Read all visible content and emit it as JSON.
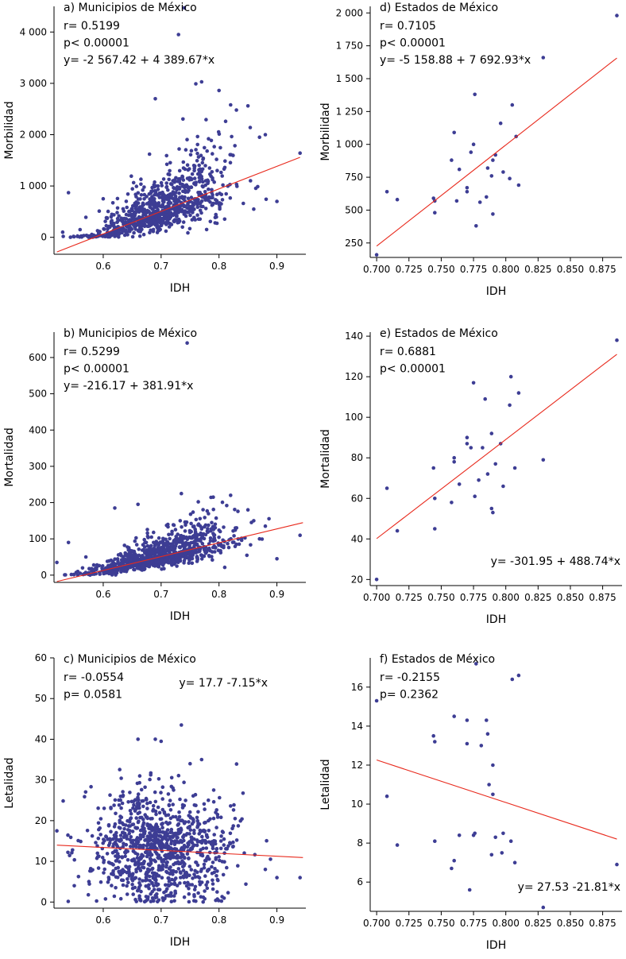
{
  "colors": {
    "point": "#3d3d94",
    "fit_line": "#e8291c",
    "axis": "#000000"
  },
  "chart_data": [
    {
      "id": "a",
      "type": "scatter",
      "title": "a) Municipios de México",
      "xlabel": "IDH",
      "ylabel": "Morbilidad",
      "xlim": [
        0.515,
        0.95
      ],
      "ylim": [
        -330,
        4500
      ],
      "xticks": [
        0.6,
        0.7,
        0.8,
        0.9
      ],
      "xtick_labels": [
        "0.6",
        "0.7",
        "0.8",
        "0.9"
      ],
      "yticks": [
        0,
        1000,
        2000,
        3000,
        4000
      ],
      "ytick_labels": [
        "0",
        "1 000",
        "2 000",
        "3 000",
        "4 000"
      ],
      "stats": [
        "r= 0.5199",
        "p< 0.00001",
        "y= -2 567.42 + 4 389.67*x"
      ],
      "stats_pos": "top-left",
      "fit": {
        "intercept": -2567.42,
        "slope": 4389.67,
        "x_range": [
          0.52,
          0.94
        ]
      },
      "generated_points": {
        "n": 900,
        "x_mean": 0.7,
        "x_sd": 0.06,
        "x_min": 0.53,
        "x_max": 0.92,
        "resid_sd": 340,
        "resid_scale_with_y": true,
        "y_min": 0,
        "seed": 11
      },
      "points": [
        [
          0.54,
          870
        ],
        [
          0.57,
          390
        ],
        [
          0.6,
          750
        ],
        [
          0.68,
          1620
        ],
        [
          0.69,
          2700
        ],
        [
          0.73,
          3950
        ],
        [
          0.74,
          4470
        ],
        [
          0.76,
          2990
        ],
        [
          0.77,
          3030
        ],
        [
          0.8,
          2860
        ],
        [
          0.82,
          2580
        ],
        [
          0.83,
          2480
        ],
        [
          0.85,
          2560
        ],
        [
          0.87,
          1950
        ],
        [
          0.88,
          2000
        ],
        [
          0.9,
          700
        ],
        [
          0.94,
          1640
        ],
        [
          0.53,
          100
        ],
        [
          0.56,
          150
        ],
        [
          0.86,
          550
        ]
      ]
    },
    {
      "id": "d",
      "type": "scatter",
      "title": "d) Estados de México",
      "xlabel": "IDH",
      "ylabel": "Morbilidad",
      "xlim": [
        0.695,
        0.89
      ],
      "ylim": [
        140,
        2050
      ],
      "xticks": [
        0.7,
        0.725,
        0.75,
        0.775,
        0.8,
        0.825,
        0.85,
        0.875
      ],
      "xtick_labels": [
        "0.700",
        "0.725",
        "0.750",
        "0.775",
        "0.800",
        "0.825",
        "0.850",
        "0.875"
      ],
      "yticks": [
        250,
        500,
        750,
        1000,
        1250,
        1500,
        1750,
        2000
      ],
      "ytick_labels": [
        "250",
        "500",
        "750",
        "1 000",
        "1 250",
        "1 500",
        "1 750",
        "2 000"
      ],
      "stats": [
        "r= 0.7105",
        "p< 0.00001",
        "y= -5 158.88 + 7 692.93*x"
      ],
      "stats_pos": "top-left",
      "fit": {
        "intercept": -5158.88,
        "slope": 7692.93,
        "x_range": [
          0.7,
          0.886
        ]
      },
      "points": [
        [
          0.7,
          160
        ],
        [
          0.708,
          640
        ],
        [
          0.716,
          580
        ],
        [
          0.744,
          590
        ],
        [
          0.745,
          570
        ],
        [
          0.745,
          480
        ],
        [
          0.758,
          880
        ],
        [
          0.76,
          1090
        ],
        [
          0.762,
          570
        ],
        [
          0.764,
          810
        ],
        [
          0.77,
          670
        ],
        [
          0.77,
          640
        ],
        [
          0.773,
          940
        ],
        [
          0.775,
          1000
        ],
        [
          0.776,
          1380
        ],
        [
          0.777,
          380
        ],
        [
          0.78,
          560
        ],
        [
          0.785,
          600
        ],
        [
          0.786,
          820
        ],
        [
          0.789,
          760
        ],
        [
          0.79,
          880
        ],
        [
          0.79,
          470
        ],
        [
          0.792,
          920
        ],
        [
          0.796,
          1160
        ],
        [
          0.798,
          790
        ],
        [
          0.803,
          740
        ],
        [
          0.805,
          1300
        ],
        [
          0.808,
          1060
        ],
        [
          0.81,
          690
        ],
        [
          0.829,
          1660
        ],
        [
          0.886,
          1980
        ]
      ]
    },
    {
      "id": "b",
      "type": "scatter",
      "title": "b) Municipios de México",
      "xlabel": "IDH",
      "ylabel": "Mortalidad",
      "xlim": [
        0.515,
        0.95
      ],
      "ylim": [
        -20,
        670
      ],
      "xticks": [
        0.6,
        0.7,
        0.8,
        0.9
      ],
      "xtick_labels": [
        "0.6",
        "0.7",
        "0.8",
        "0.9"
      ],
      "yticks": [
        0,
        100,
        200,
        300,
        400,
        500,
        600
      ],
      "ytick_labels": [
        "0",
        "100",
        "200",
        "300",
        "400",
        "500",
        "600"
      ],
      "stats": [
        "r= 0.5299",
        "p< 0.00001",
        "y= -216.17 + 381.91*x"
      ],
      "stats_pos": "top-left",
      "fit": {
        "intercept": -216.17,
        "slope": 381.91,
        "x_range": [
          0.52,
          0.945
        ]
      },
      "generated_points": {
        "n": 900,
        "x_mean": 0.7,
        "x_sd": 0.06,
        "x_min": 0.53,
        "x_max": 0.92,
        "resid_sd": 24,
        "resid_scale_with_y": true,
        "y_min": 0,
        "seed": 23
      },
      "points": [
        [
          0.745,
          640
        ],
        [
          0.62,
          185
        ],
        [
          0.66,
          195
        ],
        [
          0.735,
          225
        ],
        [
          0.79,
          215
        ],
        [
          0.82,
          220
        ],
        [
          0.85,
          180
        ],
        [
          0.88,
          135
        ],
        [
          0.9,
          45
        ],
        [
          0.94,
          110
        ],
        [
          0.54,
          90
        ],
        [
          0.52,
          35
        ],
        [
          0.57,
          50
        ],
        [
          0.86,
          150
        ],
        [
          0.87,
          100
        ]
      ]
    },
    {
      "id": "e",
      "type": "scatter",
      "title": "e) Estados de México",
      "xlabel": "IDH",
      "ylabel": "Mortalidad",
      "xlim": [
        0.695,
        0.89
      ],
      "ylim": [
        17,
        142
      ],
      "xticks": [
        0.7,
        0.725,
        0.75,
        0.775,
        0.8,
        0.825,
        0.85,
        0.875
      ],
      "xtick_labels": [
        "0.700",
        "0.725",
        "0.750",
        "0.775",
        "0.800",
        "0.825",
        "0.850",
        "0.875"
      ],
      "yticks": [
        20,
        40,
        60,
        80,
        100,
        120,
        140
      ],
      "ytick_labels": [
        "20",
        "40",
        "60",
        "80",
        "100",
        "120",
        "140"
      ],
      "stats": [
        "r= 0.6881",
        "p< 0.00001"
      ],
      "stats_pos": "top-left",
      "equation": "y= -301.95 + 488.74*x",
      "equation_pos": "bottom-right",
      "fit": {
        "intercept": -301.95,
        "slope": 488.74,
        "x_range": [
          0.7,
          0.886
        ]
      },
      "points": [
        [
          0.7,
          20
        ],
        [
          0.708,
          65
        ],
        [
          0.716,
          44
        ],
        [
          0.744,
          75
        ],
        [
          0.745,
          60
        ],
        [
          0.745,
          45
        ],
        [
          0.758,
          58
        ],
        [
          0.76,
          78
        ],
        [
          0.76,
          80
        ],
        [
          0.764,
          67
        ],
        [
          0.77,
          87
        ],
        [
          0.77,
          90
        ],
        [
          0.773,
          85
        ],
        [
          0.775,
          117
        ],
        [
          0.776,
          61
        ],
        [
          0.779,
          69
        ],
        [
          0.782,
          85
        ],
        [
          0.784,
          109
        ],
        [
          0.786,
          72
        ],
        [
          0.789,
          92
        ],
        [
          0.79,
          53
        ],
        [
          0.789,
          55
        ],
        [
          0.792,
          77
        ],
        [
          0.796,
          87
        ],
        [
          0.798,
          66
        ],
        [
          0.803,
          106
        ],
        [
          0.804,
          120
        ],
        [
          0.807,
          75
        ],
        [
          0.81,
          112
        ],
        [
          0.829,
          79
        ],
        [
          0.886,
          138
        ]
      ]
    },
    {
      "id": "c",
      "type": "scatter",
      "title": "c) Municipios de México",
      "xlabel": "IDH",
      "ylabel": "Letalidad",
      "xlim": [
        0.515,
        0.95
      ],
      "ylim": [
        -1.5,
        60
      ],
      "xticks": [
        0.6,
        0.7,
        0.8,
        0.9
      ],
      "xtick_labels": [
        "0.6",
        "0.7",
        "0.8",
        "0.9"
      ],
      "yticks": [
        0,
        10,
        20,
        30,
        40,
        50,
        60
      ],
      "ytick_labels": [
        "0",
        "10",
        "20",
        "30",
        "40",
        "50",
        "60"
      ],
      "stats": [
        "r= -0.0554",
        "p= 0.0581"
      ],
      "stats_pos": "top-left",
      "equation": "y= 17.7 -7.15*x",
      "equation_pos": "top-right",
      "fit": {
        "intercept": 17.7,
        "slope": -7.15,
        "x_range": [
          0.52,
          0.945
        ]
      },
      "generated_points": {
        "n": 1000,
        "x_mean": 0.7,
        "x_sd": 0.06,
        "x_min": 0.53,
        "x_max": 0.92,
        "resid_sd": 6.8,
        "resid_scale_with_y": false,
        "y_min": 0,
        "seed": 37
      },
      "points": [
        [
          0.735,
          43.5
        ],
        [
          0.66,
          40
        ],
        [
          0.69,
          40
        ],
        [
          0.7,
          39.5
        ],
        [
          0.52,
          17.5
        ],
        [
          0.55,
          4
        ],
        [
          0.59,
          12
        ],
        [
          0.88,
          8
        ],
        [
          0.9,
          6
        ],
        [
          0.94,
          6
        ],
        [
          0.77,
          35
        ],
        [
          0.75,
          34
        ]
      ]
    },
    {
      "id": "f",
      "type": "scatter",
      "title": "f) Estados de México",
      "xlabel": "IDH",
      "ylabel": "Letalidad",
      "xlim": [
        0.695,
        0.89
      ],
      "ylim": [
        4.5,
        17.5
      ],
      "xticks": [
        0.7,
        0.725,
        0.75,
        0.775,
        0.8,
        0.825,
        0.85,
        0.875
      ],
      "xtick_labels": [
        "0.700",
        "0.725",
        "0.750",
        "0.775",
        "0.800",
        "0.825",
        "0.850",
        "0.875"
      ],
      "yticks": [
        6,
        8,
        10,
        12,
        14,
        16
      ],
      "ytick_labels": [
        "6",
        "8",
        "10",
        "12",
        "14",
        "16"
      ],
      "stats": [
        "r= -0.2155",
        "p= 0.2362"
      ],
      "stats_pos": "top-left",
      "equation": "y= 27.53 -21.81*x",
      "equation_pos": "bottom-right",
      "fit": {
        "intercept": 27.53,
        "slope": -21.81,
        "x_range": [
          0.7,
          0.886
        ]
      },
      "points": [
        [
          0.7,
          15.3
        ],
        [
          0.708,
          10.4
        ],
        [
          0.716,
          7.9
        ],
        [
          0.744,
          13.5
        ],
        [
          0.745,
          13.2
        ],
        [
          0.745,
          8.1
        ],
        [
          0.758,
          6.7
        ],
        [
          0.76,
          14.5
        ],
        [
          0.76,
          7.1
        ],
        [
          0.764,
          8.4
        ],
        [
          0.77,
          14.3
        ],
        [
          0.77,
          13.1
        ],
        [
          0.772,
          5.6
        ],
        [
          0.775,
          8.4
        ],
        [
          0.776,
          8.5
        ],
        [
          0.777,
          17.2
        ],
        [
          0.781,
          13.0
        ],
        [
          0.785,
          14.3
        ],
        [
          0.786,
          13.6
        ],
        [
          0.787,
          11.0
        ],
        [
          0.789,
          7.4
        ],
        [
          0.79,
          12.0
        ],
        [
          0.79,
          10.5
        ],
        [
          0.792,
          8.3
        ],
        [
          0.797,
          7.5
        ],
        [
          0.798,
          8.5
        ],
        [
          0.804,
          8.1
        ],
        [
          0.805,
          16.4
        ],
        [
          0.807,
          7.0
        ],
        [
          0.81,
          16.6
        ],
        [
          0.829,
          4.7
        ],
        [
          0.886,
          6.9
        ]
      ]
    }
  ]
}
